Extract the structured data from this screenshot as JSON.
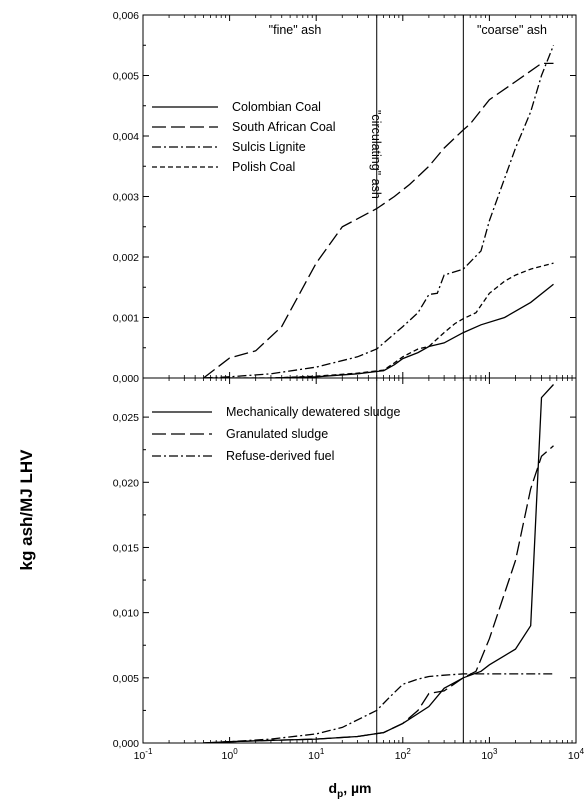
{
  "figure": {
    "ylabel": "kg ash/MJ LHV",
    "xlabel_main": "d",
    "xlabel_sub": "p",
    "xlabel_unit": ", µm",
    "annotations": {
      "fine": "\"fine\" ash",
      "coarse": "\"coarse\" ash",
      "circulating": "\"circulating\" ash"
    },
    "boundaries_um": [
      50,
      500
    ]
  },
  "chart_data": [
    {
      "type": "line",
      "panel": "top",
      "xscale": "log",
      "xlim": [
        0.1,
        10000
      ],
      "ylim": [
        0,
        0.006
      ],
      "xticks": [
        {
          "base": "10",
          "exp": "-1"
        },
        {
          "base": "10",
          "exp": "0"
        },
        {
          "base": "10",
          "exp": "1"
        },
        {
          "base": "10",
          "exp": "2"
        },
        {
          "base": "10",
          "exp": "3"
        },
        {
          "base": "10",
          "exp": "4"
        }
      ],
      "yticks": [
        {
          "v": 0,
          "label": "0,000"
        },
        {
          "v": 0.001,
          "label": "0,001"
        },
        {
          "v": 0.002,
          "label": "0,002"
        },
        {
          "v": 0.003,
          "label": "0,003"
        },
        {
          "v": 0.004,
          "label": "0,004"
        },
        {
          "v": 0.005,
          "label": "0,005"
        },
        {
          "v": 0.006,
          "label": "0,006"
        }
      ],
      "legend_position": "top-left",
      "series": [
        {
          "name": "Colombian Coal",
          "dash": "solid",
          "x": [
            0.5,
            1,
            3,
            10,
            30,
            60,
            80,
            100,
            150,
            200,
            300,
            500,
            800,
            1500,
            3000,
            5500
          ],
          "y": [
            0,
            0,
            0,
            2e-05,
            7e-05,
            0.00012,
            0.00022,
            0.00032,
            0.00042,
            0.00052,
            0.00058,
            0.00075,
            0.00088,
            0.001,
            0.00125,
            0.00155
          ]
        },
        {
          "name": "South African Coal",
          "dash": "long",
          "x": [
            0.5,
            1,
            2,
            4,
            10,
            20,
            50,
            80,
            120,
            200,
            300,
            500,
            600,
            1000,
            2000,
            4000,
            5500
          ],
          "y": [
            0,
            0.00033,
            0.00045,
            0.00085,
            0.0019,
            0.0025,
            0.0028,
            0.003,
            0.0032,
            0.0035,
            0.0038,
            0.0041,
            0.0042,
            0.0046,
            0.0049,
            0.0052,
            0.0052
          ]
        },
        {
          "name": "Sulcis Lignite",
          "dash": "dashdot",
          "x": [
            0.5,
            1,
            3,
            10,
            30,
            50,
            100,
            150,
            200,
            250,
            300,
            500,
            800,
            1000,
            1500,
            2000,
            3000,
            4000,
            5500
          ],
          "y": [
            0,
            2e-05,
            7e-05,
            0.00018,
            0.00035,
            0.00048,
            0.00085,
            0.00108,
            0.00138,
            0.0014,
            0.0017,
            0.0018,
            0.0021,
            0.0026,
            0.0033,
            0.0038,
            0.0044,
            0.005,
            0.0055
          ]
        },
        {
          "name": "Polish Coal",
          "dash": "shortdash",
          "x": [
            0.5,
            1,
            3,
            10,
            30,
            60,
            80,
            100,
            150,
            200,
            300,
            400,
            500,
            700,
            1000,
            1500,
            2000,
            3000,
            5500
          ],
          "y": [
            0,
            0,
            0,
            3e-05,
            8e-05,
            0.00013,
            0.00025,
            0.00035,
            0.00048,
            0.00052,
            0.00075,
            0.0009,
            0.00098,
            0.00108,
            0.0014,
            0.0016,
            0.0017,
            0.0018,
            0.0019
          ]
        }
      ]
    },
    {
      "type": "line",
      "panel": "bottom",
      "xscale": "log",
      "xlim": [
        0.1,
        10000
      ],
      "ylim": [
        0,
        0.028
      ],
      "xticks": [
        {
          "base": "10",
          "exp": "-1"
        },
        {
          "base": "10",
          "exp": "0"
        },
        {
          "base": "10",
          "exp": "1"
        },
        {
          "base": "10",
          "exp": "2"
        },
        {
          "base": "10",
          "exp": "3"
        },
        {
          "base": "10",
          "exp": "4"
        }
      ],
      "yticks": [
        {
          "v": 0,
          "label": "0,000"
        },
        {
          "v": 0.005,
          "label": "0,005"
        },
        {
          "v": 0.01,
          "label": "0,010"
        },
        {
          "v": 0.015,
          "label": "0,015"
        },
        {
          "v": 0.02,
          "label": "0,020"
        },
        {
          "v": 0.025,
          "label": "0,025"
        }
      ],
      "legend_position": "top-left",
      "series": [
        {
          "name": "Mechanically dewatered sludge",
          "dash": "solid",
          "x": [
            0.5,
            1,
            3,
            10,
            30,
            60,
            100,
            200,
            300,
            500,
            800,
            1000,
            1500,
            2000,
            3000,
            4000,
            5500
          ],
          "y": [
            0,
            0.0001,
            0.0002,
            0.0003,
            0.0005,
            0.0008,
            0.0015,
            0.0028,
            0.0042,
            0.005,
            0.0055,
            0.006,
            0.0067,
            0.0072,
            0.009,
            0.0265,
            0.0275
          ]
        },
        {
          "name": "Granulated sludge",
          "dash": "long",
          "x": [
            0.5,
            1,
            3,
            10,
            30,
            60,
            100,
            150,
            200,
            300,
            500,
            700,
            1000,
            2000,
            3000,
            4000,
            5500
          ],
          "y": [
            0,
            0.0001,
            0.0002,
            0.0003,
            0.0005,
            0.0008,
            0.0015,
            0.0025,
            0.0038,
            0.004,
            0.005,
            0.0055,
            0.008,
            0.014,
            0.0195,
            0.022,
            0.0228
          ]
        },
        {
          "name": "Refuse-derived fuel",
          "dash": "dashdot",
          "x": [
            0.5,
            1,
            3,
            10,
            20,
            50,
            70,
            100,
            150,
            200,
            300,
            500,
            1000,
            5500
          ],
          "y": [
            0,
            0.0001,
            0.0003,
            0.0007,
            0.0012,
            0.0025,
            0.0035,
            0.0045,
            0.0049,
            0.0051,
            0.0052,
            0.0053,
            0.0053,
            0.0053
          ]
        }
      ]
    }
  ]
}
